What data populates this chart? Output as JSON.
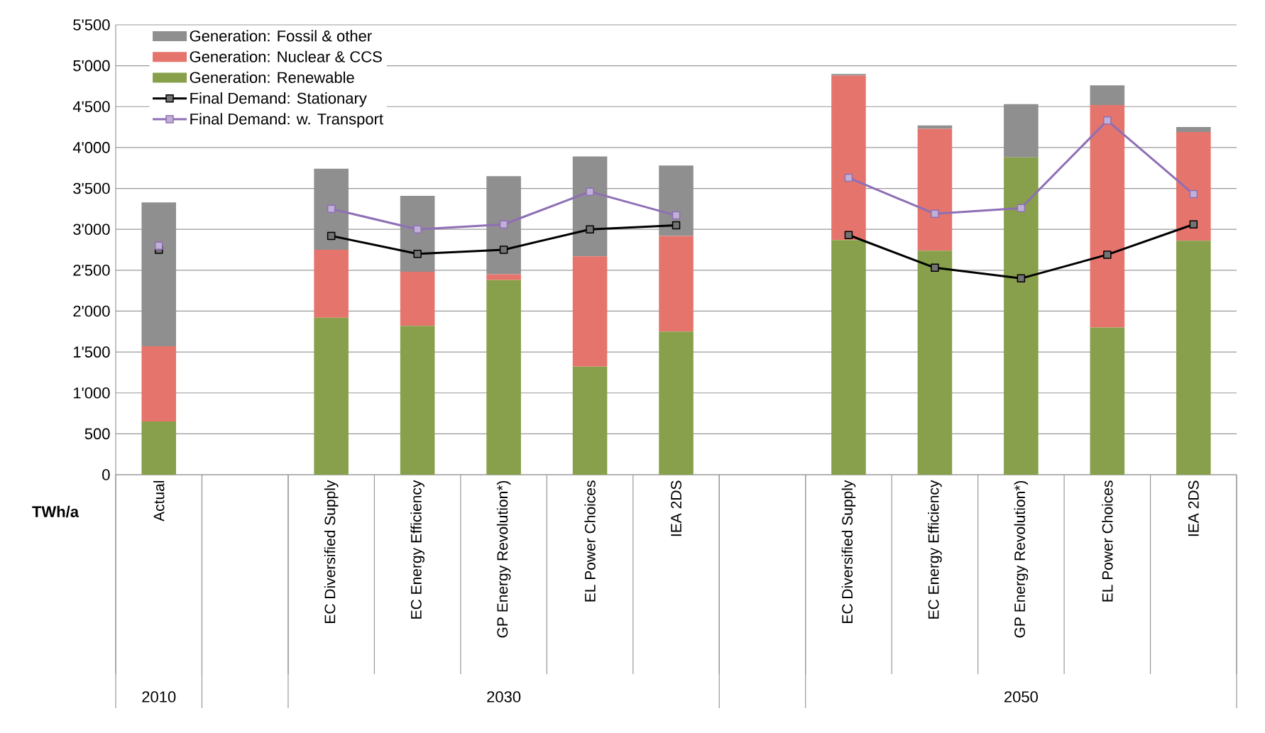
{
  "chart_data": {
    "type": "bar",
    "stacked": true,
    "ylabel": "TWh/a",
    "categories": [
      "Actual",
      null,
      "EC Diversified Supply",
      "EC Energy Efficiency",
      "GP Energy Revolution*)",
      "EL Power Choices",
      "IEA 2DS",
      null,
      "EC Diversified Supply",
      "EC Energy Efficiency",
      "GP Energy Revolution*)",
      "EL Power Choices",
      "IEA 2DS"
    ],
    "series": [
      {
        "name": "Generation: Renewable",
        "color": "#88a04b",
        "values": [
          650,
          null,
          1920,
          1820,
          2380,
          1320,
          1750,
          null,
          2870,
          2740,
          3880,
          1800,
          2860
        ]
      },
      {
        "name": "Generation: Nuclear & CCS",
        "color": "#e5756c",
        "values": [
          920,
          null,
          830,
          660,
          70,
          1350,
          1170,
          null,
          2010,
          1490,
          0,
          2720,
          1330
        ]
      },
      {
        "name": "Generation: Fossil & other",
        "color": "#8f8f8f",
        "values": [
          1760,
          null,
          990,
          930,
          1200,
          1220,
          860,
          null,
          20,
          40,
          650,
          240,
          60
        ]
      },
      {
        "name": "Final Demand: Stationary",
        "type": "line",
        "color": "#000000",
        "values": [
          2750,
          null,
          2920,
          2700,
          2750,
          3000,
          3050,
          null,
          2930,
          2530,
          2400,
          2690,
          3060
        ]
      },
      {
        "name": "Final Demand: w. Transport",
        "type": "line",
        "color": "#8e6fb5",
        "values": [
          2800,
          null,
          3250,
          3000,
          3060,
          3460,
          3170,
          null,
          3630,
          3190,
          3260,
          4330,
          3430
        ]
      }
    ],
    "ylim": [
      0,
      5500
    ],
    "yticks": [
      0,
      500,
      {
        "value": 1000,
        "label": "1'000"
      },
      {
        "value": 1500,
        "label": "1'500"
      },
      {
        "value": 2000,
        "label": "2'000"
      },
      {
        "value": 2500,
        "label": "2'500"
      },
      {
        "value": 3000,
        "label": "3'000"
      },
      {
        "value": 3500,
        "label": "3'500"
      },
      {
        "value": 4000,
        "label": "4'000"
      },
      {
        "value": 4500,
        "label": "4'500"
      },
      {
        "value": 5000,
        "label": "5'000"
      },
      {
        "value": 5500,
        "label": "5'500"
      }
    ],
    "grid": "y",
    "legend": "top left",
    "marker": "square",
    "annotations": [
      "2010",
      "2030",
      "2050"
    ]
  }
}
